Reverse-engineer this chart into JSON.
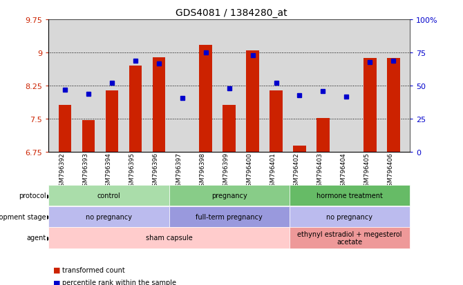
{
  "title": "GDS4081 / 1384280_at",
  "samples": [
    "GSM796392",
    "GSM796393",
    "GSM796394",
    "GSM796395",
    "GSM796396",
    "GSM796397",
    "GSM796398",
    "GSM796399",
    "GSM796400",
    "GSM796401",
    "GSM796402",
    "GSM796403",
    "GSM796404",
    "GSM796405",
    "GSM796406"
  ],
  "bar_values": [
    7.82,
    7.47,
    8.14,
    8.71,
    8.9,
    6.68,
    9.17,
    7.82,
    9.05,
    8.14,
    6.9,
    7.52,
    6.68,
    8.87,
    8.87
  ],
  "dot_pct": [
    47,
    44,
    52,
    69,
    67,
    41,
    75,
    48,
    73,
    52,
    43,
    46,
    42,
    68,
    69
  ],
  "ylim_min": 6.75,
  "ylim_max": 9.75,
  "yticks": [
    6.75,
    7.5,
    8.25,
    9.0,
    9.75
  ],
  "ytick_labels": [
    "6.75",
    "7.5",
    "8.25",
    "9",
    "9.75"
  ],
  "right_ytick_pcts": [
    0,
    25,
    50,
    75,
    100
  ],
  "right_ytick_labels": [
    "0",
    "25",
    "50",
    "75",
    "100%"
  ],
  "bar_color": "#cc2200",
  "dot_color": "#0000cc",
  "plot_bg": "#d8d8d8",
  "fig_bg": "#ffffff",
  "protocol_groups": [
    {
      "label": "control",
      "start": 0,
      "end": 4,
      "color": "#aaddaa"
    },
    {
      "label": "pregnancy",
      "start": 5,
      "end": 9,
      "color": "#88cc88"
    },
    {
      "label": "hormone treatment",
      "start": 10,
      "end": 14,
      "color": "#66bb66"
    }
  ],
  "dev_stage_groups": [
    {
      "label": "no pregnancy",
      "start": 0,
      "end": 4,
      "color": "#bbbbee"
    },
    {
      "label": "full-term pregnancy",
      "start": 5,
      "end": 9,
      "color": "#9999dd"
    },
    {
      "label": "no pregnancy",
      "start": 10,
      "end": 14,
      "color": "#bbbbee"
    }
  ],
  "agent_groups": [
    {
      "label": "sham capsule",
      "start": 0,
      "end": 9,
      "color": "#ffcccc"
    },
    {
      "label": "ethynyl estradiol + megesterol\nacetate",
      "start": 10,
      "end": 14,
      "color": "#ee9999"
    }
  ],
  "row_labels": [
    "protocol",
    "development stage",
    "agent"
  ],
  "legend_bar_label": "transformed count",
  "legend_dot_label": "percentile rank within the sample"
}
